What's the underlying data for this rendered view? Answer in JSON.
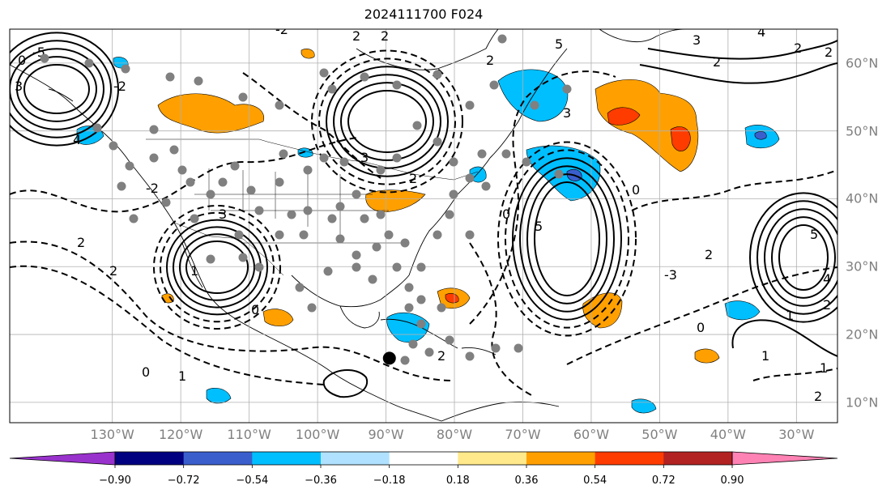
{
  "title": "2024111700 F024",
  "map": {
    "projection": "equirectangular",
    "lon_range": [
      -145,
      -24
    ],
    "lat_range": [
      7,
      65
    ],
    "lon_ticks": [
      {
        "value": -130,
        "label": "130°W"
      },
      {
        "value": -120,
        "label": "120°W"
      },
      {
        "value": -110,
        "label": "110°W"
      },
      {
        "value": -100,
        "label": "100°W"
      },
      {
        "value": -90,
        "label": "90°W"
      },
      {
        "value": -80,
        "label": "80°W"
      },
      {
        "value": -70,
        "label": "70°W"
      },
      {
        "value": -60,
        "label": "60°W"
      },
      {
        "value": -50,
        "label": "50°W"
      },
      {
        "value": -40,
        "label": "40°W"
      },
      {
        "value": -30,
        "label": "30°W"
      }
    ],
    "lat_ticks": [
      {
        "value": 60,
        "label": "60°N"
      },
      {
        "value": 50,
        "label": "50°N"
      },
      {
        "value": 40,
        "label": "40°N"
      },
      {
        "value": 30,
        "label": "30°N"
      },
      {
        "value": 20,
        "label": "20°N"
      },
      {
        "value": 10,
        "label": "10°N"
      }
    ],
    "gridlines": true,
    "marker": {
      "lon": -89.5,
      "lat": 16.5,
      "color": "#000000"
    },
    "station_color": "#808080"
  },
  "colorbar": {
    "ticks": [
      "−0.90",
      "−0.72",
      "−0.54",
      "−0.36",
      "−0.18",
      "0.18",
      "0.36",
      "0.54",
      "0.72",
      "0.90"
    ],
    "colors": [
      "#9932cc",
      "#000080",
      "#3a5fcd",
      "#00bfff",
      "#b0e2ff",
      "#ffffff",
      "#ffe98a",
      "#ffa000",
      "#ff3c00",
      "#b22222",
      "#ff82b4"
    ]
  }
}
